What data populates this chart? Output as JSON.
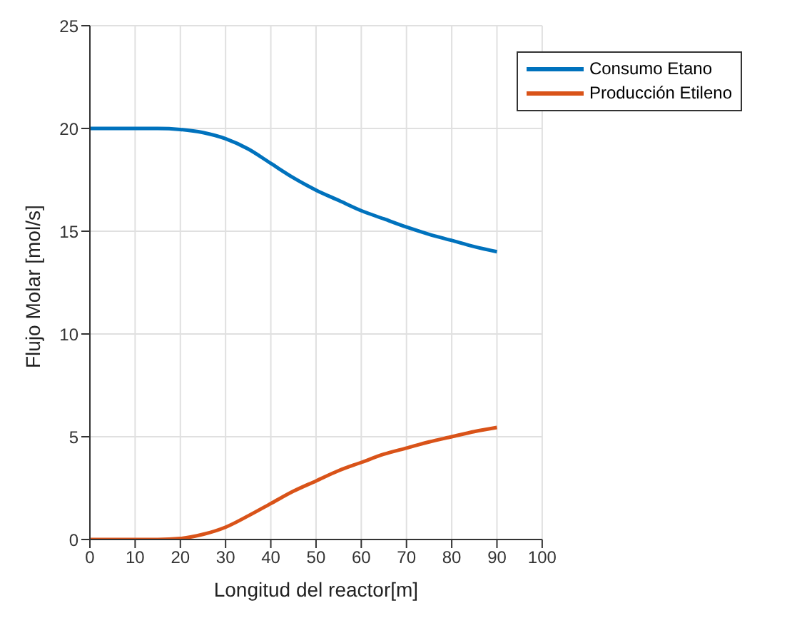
{
  "chart_data": {
    "type": "line",
    "xlabel": "Longitud del reactor[m]",
    "ylabel": "Flujo Molar [mol/s]",
    "x": [
      0,
      10,
      15,
      20,
      25,
      30,
      35,
      40,
      45,
      50,
      55,
      60,
      65,
      70,
      75,
      80,
      85,
      90
    ],
    "series": [
      {
        "name": "Consumo Etano",
        "color": "#0072bd",
        "values": [
          20,
          20,
          20,
          19.95,
          19.8,
          19.5,
          19.0,
          18.3,
          17.6,
          17.0,
          16.5,
          16.0,
          15.6,
          15.2,
          14.85,
          14.55,
          14.25,
          14.0
        ]
      },
      {
        "name": "Producción Etileno",
        "color": "#d95319",
        "values": [
          0,
          0,
          0,
          0.05,
          0.25,
          0.6,
          1.15,
          1.75,
          2.35,
          2.85,
          3.35,
          3.75,
          4.15,
          4.45,
          4.75,
          5.0,
          5.25,
          5.45
        ]
      }
    ],
    "xlim": [
      0,
      100
    ],
    "xticks": [
      0,
      10,
      20,
      30,
      40,
      50,
      60,
      70,
      80,
      90,
      100
    ],
    "ylim": [
      0,
      25
    ],
    "yticks": [
      0,
      5,
      10,
      15,
      20,
      25
    ],
    "grid": true,
    "legend": "top right",
    "marker": "none",
    "line_style": "solid"
  }
}
